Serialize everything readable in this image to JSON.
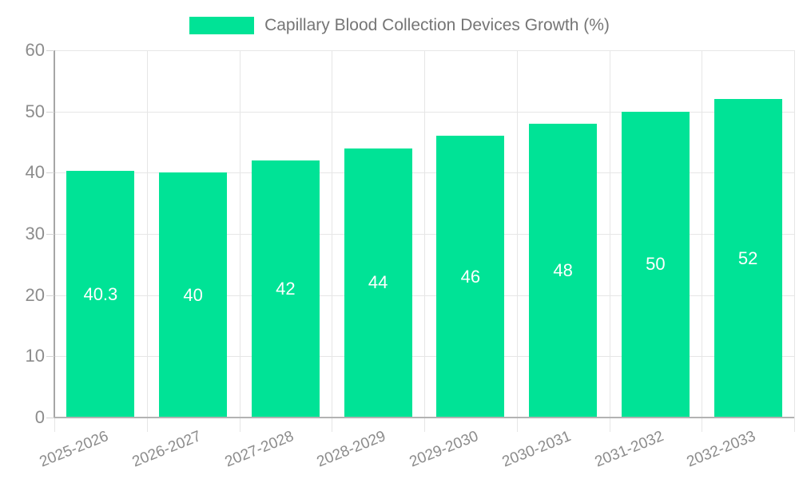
{
  "chart_data": {
    "type": "bar",
    "title": "Capillary Blood Collection Devices Growth (%)",
    "categories": [
      "2025-2026",
      "2026-2027",
      "2027-2028",
      "2028-2029",
      "2029-2030",
      "2030-2031",
      "2031-2032",
      "2032-2033"
    ],
    "values": [
      40.3,
      40,
      42,
      44,
      46,
      48,
      50,
      52
    ],
    "value_labels": [
      "40.3",
      "40",
      "42",
      "44",
      "46",
      "48",
      "50",
      "52"
    ],
    "yticks": [
      0,
      10,
      20,
      30,
      40,
      50,
      60
    ],
    "ylim": [
      0,
      60
    ],
    "grid": true,
    "legend_position": "top",
    "value_label_position": "inside-center",
    "x_label_rotation_deg": -22
  },
  "colors": {
    "bar": "#00E396",
    "axis_text": "#8c8c8c",
    "legend_text": "#757575",
    "grid": "#e6e6e6",
    "axis_line": "#b3b3b3",
    "value_text": "#ffffff"
  }
}
